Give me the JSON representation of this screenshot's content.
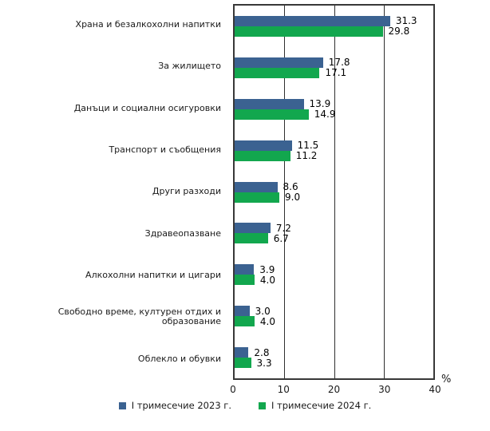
{
  "chart_data": {
    "type": "bar",
    "orientation": "horizontal",
    "categories": [
      "Храна и безалкохолни напитки",
      "За жилището",
      "Данъци и социални осигуровки",
      "Транспорт и съобщения",
      "Други разходи",
      "Здравеопазване",
      "Алкохолни напитки и цигари",
      "Свободно време, културен отдих и образование",
      "Облекло и обувки"
    ],
    "series": [
      {
        "name": "I тримесечие 2023 г.",
        "color": "#3B6291",
        "values": [
          31.3,
          17.8,
          13.9,
          11.5,
          8.6,
          7.2,
          3.9,
          3.0,
          2.8
        ]
      },
      {
        "name": "I тримесечие 2024 г.",
        "color": "#12A74E",
        "values": [
          29.8,
          17.1,
          14.9,
          11.2,
          9.0,
          6.7,
          4.0,
          4.0,
          3.3
        ]
      }
    ],
    "title": "",
    "xlabel": "%",
    "ylabel": "",
    "xlim": [
      0,
      40
    ],
    "xticks": [
      0,
      10,
      20,
      30,
      40
    ],
    "grid": "vertical-lines-at-10-20-30",
    "legend_position": "bottom",
    "value_label_format": "one-decimal"
  },
  "axis": {
    "unit_label": "%"
  },
  "legend": {
    "item_2023_label": "I тримесечие 2023 г.",
    "item_2024_label": "I тримесечие 2024 г."
  }
}
